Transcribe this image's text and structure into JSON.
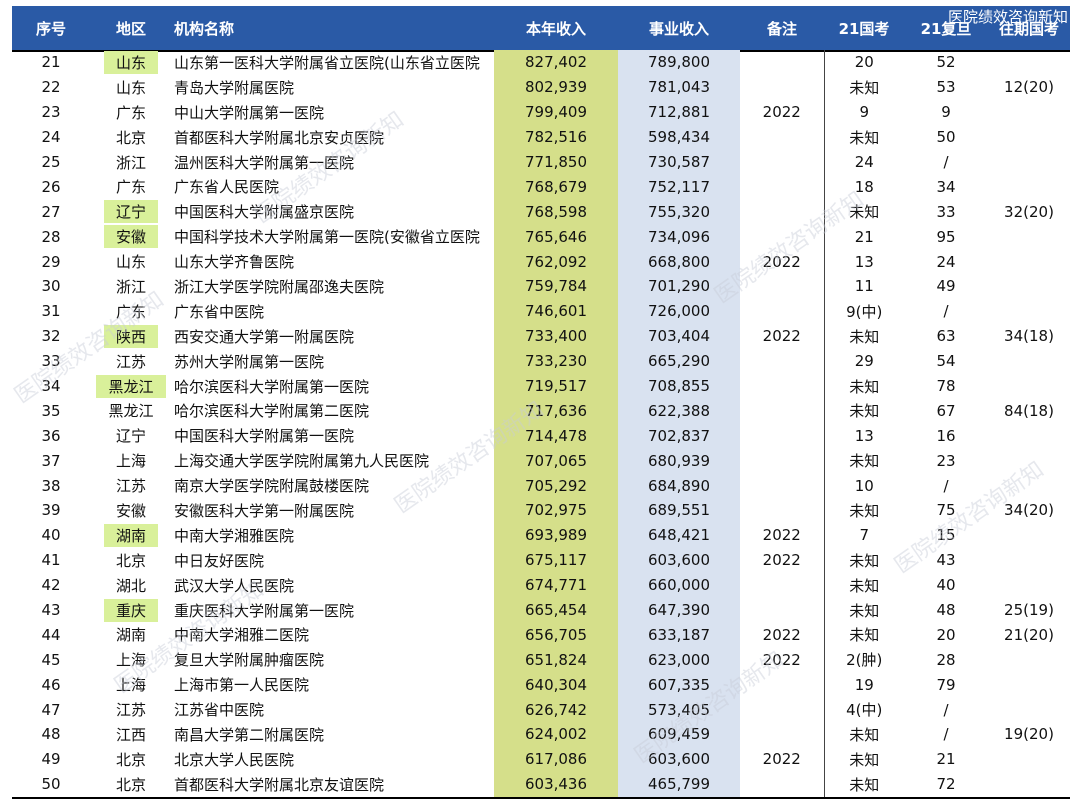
{
  "header": {
    "no": "序号",
    "region": "地区",
    "name": "机构名称",
    "revenue": "本年收入",
    "business": "事业收入",
    "note": "备注",
    "exam21": "21国考",
    "fudan21": "21复旦",
    "past_exam": "往期国考",
    "watermark": "医院绩效咨询新知"
  },
  "colors": {
    "header_bg": "#2a5aa6",
    "revenue_bg": "#d5df8a",
    "business_bg": "#d9e2f0",
    "region_highlight": "#d9f09a"
  },
  "rows": [
    {
      "no": "21",
      "region": "山东",
      "hl": true,
      "name": "山东第一医科大学附属省立医院(山东省立医院",
      "rev": "827,402",
      "biz": "789,800",
      "note": "",
      "e21": "20",
      "f21": "52",
      "past": ""
    },
    {
      "no": "22",
      "region": "山东",
      "hl": false,
      "name": "青岛大学附属医院",
      "rev": "802,939",
      "biz": "781,043",
      "note": "",
      "e21": "未知",
      "f21": "53",
      "past": "12(20)"
    },
    {
      "no": "23",
      "region": "广东",
      "hl": false,
      "name": "中山大学附属第一医院",
      "rev": "799,409",
      "biz": "712,881",
      "note": "2022",
      "e21": "9",
      "f21": "9",
      "past": ""
    },
    {
      "no": "24",
      "region": "北京",
      "hl": false,
      "name": "首都医科大学附属北京安贞医院",
      "rev": "782,516",
      "biz": "598,434",
      "note": "",
      "e21": "未知",
      "f21": "50",
      "past": ""
    },
    {
      "no": "25",
      "region": "浙江",
      "hl": false,
      "name": "温州医科大学附属第一医院",
      "rev": "771,850",
      "biz": "730,587",
      "note": "",
      "e21": "24",
      "f21": "/",
      "past": ""
    },
    {
      "no": "26",
      "region": "广东",
      "hl": false,
      "name": "广东省人民医院",
      "rev": "768,679",
      "biz": "752,117",
      "note": "",
      "e21": "18",
      "f21": "34",
      "past": ""
    },
    {
      "no": "27",
      "region": "辽宁",
      "hl": true,
      "name": "中国医科大学附属盛京医院",
      "rev": "768,598",
      "biz": "755,320",
      "note": "",
      "e21": "未知",
      "f21": "33",
      "past": "32(20)"
    },
    {
      "no": "28",
      "region": "安徽",
      "hl": true,
      "name": "中国科学技术大学附属第一医院(安徽省立医院",
      "rev": "765,646",
      "biz": "734,096",
      "note": "",
      "e21": "21",
      "f21": "95",
      "past": ""
    },
    {
      "no": "29",
      "region": "山东",
      "hl": false,
      "name": "山东大学齐鲁医院",
      "rev": "762,092",
      "biz": "668,800",
      "note": "2022",
      "e21": "13",
      "f21": "24",
      "past": ""
    },
    {
      "no": "30",
      "region": "浙江",
      "hl": false,
      "name": "浙江大学医学院附属邵逸夫医院",
      "rev": "759,784",
      "biz": "701,290",
      "note": "",
      "e21": "11",
      "f21": "49",
      "past": ""
    },
    {
      "no": "31",
      "region": "广东",
      "hl": false,
      "name": "广东省中医院",
      "rev": "746,601",
      "biz": "726,000",
      "note": "",
      "e21": "9(中)",
      "f21": "/",
      "past": ""
    },
    {
      "no": "32",
      "region": "陕西",
      "hl": true,
      "name": "西安交通大学第一附属医院",
      "rev": "733,400",
      "biz": "703,404",
      "note": "2022",
      "e21": "未知",
      "f21": "63",
      "past": "34(18)"
    },
    {
      "no": "33",
      "region": "江苏",
      "hl": false,
      "name": "苏州大学附属第一医院",
      "rev": "733,230",
      "biz": "665,290",
      "note": "",
      "e21": "29",
      "f21": "54",
      "past": ""
    },
    {
      "no": "34",
      "region": "黑龙江",
      "hl": true,
      "name": "哈尔滨医科大学附属第一医院",
      "rev": "719,517",
      "biz": "708,855",
      "note": "",
      "e21": "未知",
      "f21": "78",
      "past": ""
    },
    {
      "no": "35",
      "region": "黑龙江",
      "hl": false,
      "name": "哈尔滨医科大学附属第二医院",
      "rev": "717,636",
      "biz": "622,388",
      "note": "",
      "e21": "未知",
      "f21": "67",
      "past": "84(18)"
    },
    {
      "no": "36",
      "region": "辽宁",
      "hl": false,
      "name": "中国医科大学附属第一医院",
      "rev": "714,478",
      "biz": "702,837",
      "note": "",
      "e21": "13",
      "f21": "16",
      "past": ""
    },
    {
      "no": "37",
      "region": "上海",
      "hl": false,
      "name": "上海交通大学医学院附属第九人民医院",
      "rev": "707,065",
      "biz": "680,939",
      "note": "",
      "e21": "未知",
      "f21": "23",
      "past": ""
    },
    {
      "no": "38",
      "region": "江苏",
      "hl": false,
      "name": "南京大学医学院附属鼓楼医院",
      "rev": "705,292",
      "biz": "684,890",
      "note": "",
      "e21": "10",
      "f21": "/",
      "past": ""
    },
    {
      "no": "39",
      "region": "安徽",
      "hl": false,
      "name": "安徽医科大学第一附属医院",
      "rev": "702,975",
      "biz": "689,551",
      "note": "",
      "e21": "未知",
      "f21": "75",
      "past": "34(20)"
    },
    {
      "no": "40",
      "region": "湖南",
      "hl": true,
      "name": "中南大学湘雅医院",
      "rev": "693,989",
      "biz": "648,421",
      "note": "2022",
      "e21": "7",
      "f21": "15",
      "past": ""
    },
    {
      "no": "41",
      "region": "北京",
      "hl": false,
      "name": "中日友好医院",
      "rev": "675,117",
      "biz": "603,600",
      "note": "2022",
      "e21": "未知",
      "f21": "43",
      "past": ""
    },
    {
      "no": "42",
      "region": "湖北",
      "hl": false,
      "name": "武汉大学人民医院",
      "rev": "674,771",
      "biz": "660,000",
      "note": "",
      "e21": "未知",
      "f21": "40",
      "past": ""
    },
    {
      "no": "43",
      "region": "重庆",
      "hl": true,
      "name": "重庆医科大学附属第一医院",
      "rev": "665,454",
      "biz": "647,390",
      "note": "",
      "e21": "未知",
      "f21": "48",
      "past": "25(19)"
    },
    {
      "no": "44",
      "region": "湖南",
      "hl": false,
      "name": "中南大学湘雅二医院",
      "rev": "656,705",
      "biz": "633,187",
      "note": "2022",
      "e21": "未知",
      "f21": "20",
      "past": "21(20)"
    },
    {
      "no": "45",
      "region": "上海",
      "hl": false,
      "name": "复旦大学附属肿瘤医院",
      "rev": "651,824",
      "biz": "623,000",
      "note": "2022",
      "e21": "2(肿)",
      "f21": "28",
      "past": ""
    },
    {
      "no": "46",
      "region": "上海",
      "hl": false,
      "name": "上海市第一人民医院",
      "rev": "640,304",
      "biz": "607,335",
      "note": "",
      "e21": "19",
      "f21": "79",
      "past": ""
    },
    {
      "no": "47",
      "region": "江苏",
      "hl": false,
      "name": "江苏省中医院",
      "rev": "626,742",
      "biz": "573,405",
      "note": "",
      "e21": "4(中)",
      "f21": "/",
      "past": ""
    },
    {
      "no": "48",
      "region": "江西",
      "hl": false,
      "name": "南昌大学第二附属医院",
      "rev": "624,002",
      "biz": "609,459",
      "note": "",
      "e21": "未知",
      "f21": "/",
      "past": "19(20)"
    },
    {
      "no": "49",
      "region": "北京",
      "hl": false,
      "name": "北京大学人民医院",
      "rev": "617,086",
      "biz": "603,600",
      "note": "2022",
      "e21": "未知",
      "f21": "21",
      "past": ""
    },
    {
      "no": "50",
      "region": "北京",
      "hl": false,
      "name": "首都医科大学附属北京友谊医院",
      "rev": "603,436",
      "biz": "465,799",
      "note": "",
      "e21": "未知",
      "f21": "72",
      "past": ""
    }
  ]
}
